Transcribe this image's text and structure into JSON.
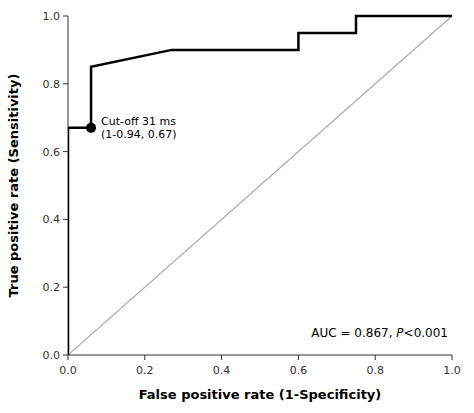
{
  "chart_data": {
    "type": "line",
    "xlabel": "False positive rate (1-Specificity)",
    "ylabel": "True positive rate (Sensitivity)",
    "series": [
      {
        "type": "line",
        "x": [
          0.0,
          1.0
        ],
        "values": [
          0.0,
          1.0
        ],
        "color": "#aaaaaa"
      },
      {
        "type": "line",
        "x": [
          0.0,
          0.0,
          0.0,
          0.0,
          0.06,
          0.06,
          0.06,
          0.27,
          0.27,
          0.37,
          0.6,
          0.6,
          0.75,
          0.75,
          1.0,
          1.0
        ],
        "values": [
          0.0,
          0.02,
          0.38,
          0.67,
          0.67,
          0.72,
          0.85,
          0.9,
          0.9,
          0.9,
          0.9,
          0.95,
          0.95,
          1.0,
          1.0,
          1.0
        ],
        "color": "#000000"
      },
      {
        "type": "scatter",
        "x": [
          0.06
        ],
        "values": [
          0.67
        ],
        "color": "#000000",
        "marker": "circle"
      }
    ],
    "annotations": [
      {
        "lines": [
          "Cut-off 31 ms",
          "(1-0.94, 0.67)"
        ]
      },
      {
        "parts": [
          "AUC = 0.867, ",
          "P",
          "<0.001"
        ]
      }
    ],
    "xlim": [
      0.0,
      1.0
    ],
    "ylim": [
      0.0,
      1.0
    ],
    "xticks": [
      {
        "value": 0.0,
        "label": "0.0"
      },
      0.2,
      0.4,
      0.6,
      0.8,
      {
        "value": 1.0,
        "label": "1.0"
      }
    ],
    "yticks": [
      {
        "value": 0.0,
        "label": "0.0"
      },
      0.2,
      0.4,
      0.6,
      0.8,
      {
        "value": 1.0,
        "label": "1.0"
      }
    ],
    "grid": false
  }
}
